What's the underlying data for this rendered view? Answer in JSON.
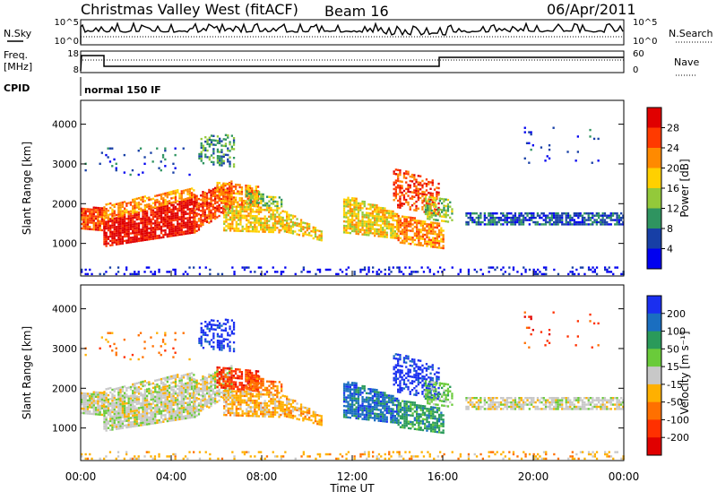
{
  "header": {
    "site": "Christmas Valley West (fitACF)",
    "beam": "Beam 16",
    "date": "06/Apr/2011"
  },
  "panel_labels": {
    "nsky": "N.Sky",
    "nsearch": "N.Search",
    "freq": "Freq.",
    "freq_unit": "[MHz]",
    "nave": "Nave",
    "cpid": "CPID",
    "mode": "normal 150 IF",
    "nsky_ticks": [
      "10^5",
      "10^0"
    ],
    "nsearch_ticks": [
      "10^5",
      "10^0"
    ],
    "freq_ticks": [
      "18",
      "8"
    ],
    "nave_ticks": [
      "60",
      "0"
    ]
  },
  "chart_data": [
    {
      "type": "heatmap",
      "name": "power",
      "ylabel": "Slant Range [km]",
      "yticks": [
        1000,
        2000,
        3000,
        4000
      ],
      "ylim": [
        180,
        4600
      ],
      "xlim": [
        0,
        24
      ],
      "colorbar": {
        "label": "Power [dB]",
        "ticks": [
          "28",
          "24",
          "20",
          "16",
          "12",
          "8",
          "4"
        ],
        "colors": [
          "#e00000",
          "#ff3a00",
          "#ff8a00",
          "#ffd000",
          "#93c93a",
          "#2f9460",
          "#173fa6",
          "#0000f0"
        ]
      }
    },
    {
      "type": "heatmap",
      "name": "velocity",
      "ylabel": "Slant Range [km]",
      "yticks": [
        1000,
        2000,
        3000,
        4000
      ],
      "ylim": [
        180,
        4600
      ],
      "xlim": [
        0,
        24
      ],
      "colorbar": {
        "label": "Velocity [m s⁻¹]",
        "ticks": [
          "200",
          "100",
          "50",
          "15",
          "-15",
          "-50",
          "-100",
          "-200"
        ],
        "colors": [
          "#1a2ff0",
          "#1a6ec0",
          "#2a9a5a",
          "#6acb3a",
          "#c8c8c8",
          "#ffb000",
          "#ff7000",
          "#ff3000",
          "#e00000"
        ]
      }
    }
  ],
  "time_axis": {
    "xlabel": "Time UT",
    "ticks": [
      "00:00",
      "04:00",
      "08:00",
      "12:00",
      "16:00",
      "20:00",
      "00:00"
    ]
  }
}
